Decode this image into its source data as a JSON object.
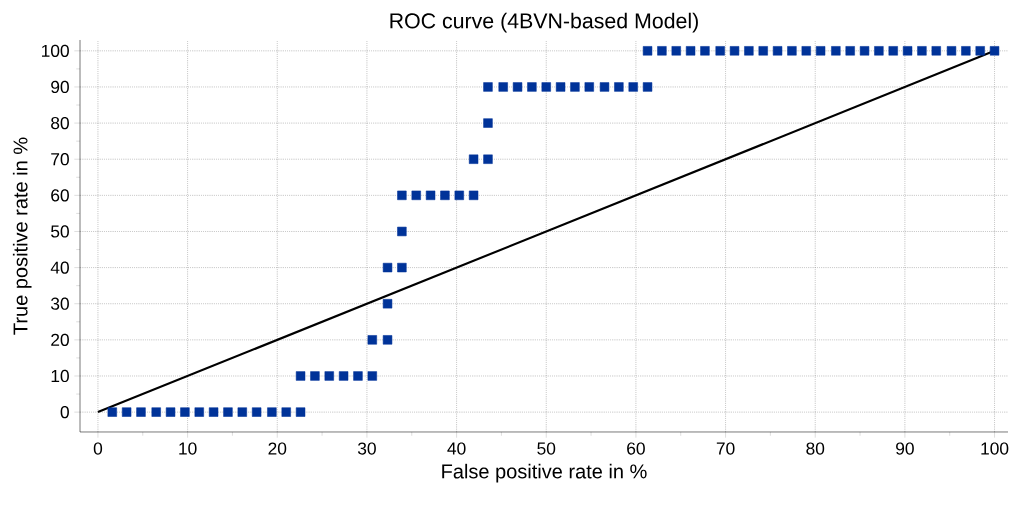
{
  "chart_data": {
    "type": "scatter",
    "title": "ROC curve (4BVN-based Model)",
    "xlabel": "False positive rate in %",
    "ylabel": "True positive rate in %",
    "xlim": [
      -2,
      101.5
    ],
    "ylim": [
      -5.5,
      103
    ],
    "xticks": [
      0,
      10,
      20,
      30,
      40,
      50,
      60,
      70,
      80,
      90,
      100
    ],
    "yticks": [
      0,
      10,
      20,
      30,
      40,
      50,
      60,
      70,
      80,
      90,
      100
    ],
    "grid": true,
    "series": [
      {
        "color": "#003399",
        "marker": "square",
        "x": [
          1.6,
          3.2,
          4.8,
          6.5,
          8.1,
          9.7,
          11.3,
          12.9,
          14.5,
          16.1,
          17.7,
          19.4,
          21.0,
          22.6,
          22.6,
          24.2,
          25.8,
          27.4,
          29.0,
          30.6,
          30.6,
          32.3,
          32.3,
          32.3,
          33.9,
          33.9,
          33.9,
          35.5,
          37.1,
          38.7,
          40.3,
          41.9,
          41.9,
          43.5,
          43.5,
          43.5,
          45.2,
          46.8,
          48.4,
          50.0,
          51.6,
          53.2,
          54.8,
          56.5,
          58.1,
          59.7,
          61.3,
          61.3,
          62.9,
          64.5,
          66.1,
          67.7,
          69.4,
          71.0,
          72.6,
          74.2,
          75.8,
          77.4,
          79.0,
          80.6,
          82.3,
          83.9,
          85.5,
          87.1,
          88.7,
          90.3,
          91.9,
          93.5,
          95.2,
          96.8,
          98.4,
          100.0
        ],
        "values": [
          0,
          0,
          0,
          0,
          0,
          0,
          0,
          0,
          0,
          0,
          0,
          0,
          0,
          0,
          10,
          10,
          10,
          10,
          10,
          10,
          20,
          20,
          30,
          40,
          40,
          50,
          60,
          60,
          60,
          60,
          60,
          60,
          70,
          70,
          80,
          90,
          90,
          90,
          90,
          90,
          90,
          90,
          90,
          90,
          90,
          90,
          90,
          100,
          100,
          100,
          100,
          100,
          100,
          100,
          100,
          100,
          100,
          100,
          100,
          100,
          100,
          100,
          100,
          100,
          100,
          100,
          100,
          100,
          100,
          100,
          100,
          100
        ]
      },
      {
        "type": "line",
        "color": "#000000",
        "line_style": "solid",
        "marker": "none",
        "x": [
          0,
          100
        ],
        "values": [
          0,
          100
        ]
      }
    ]
  }
}
